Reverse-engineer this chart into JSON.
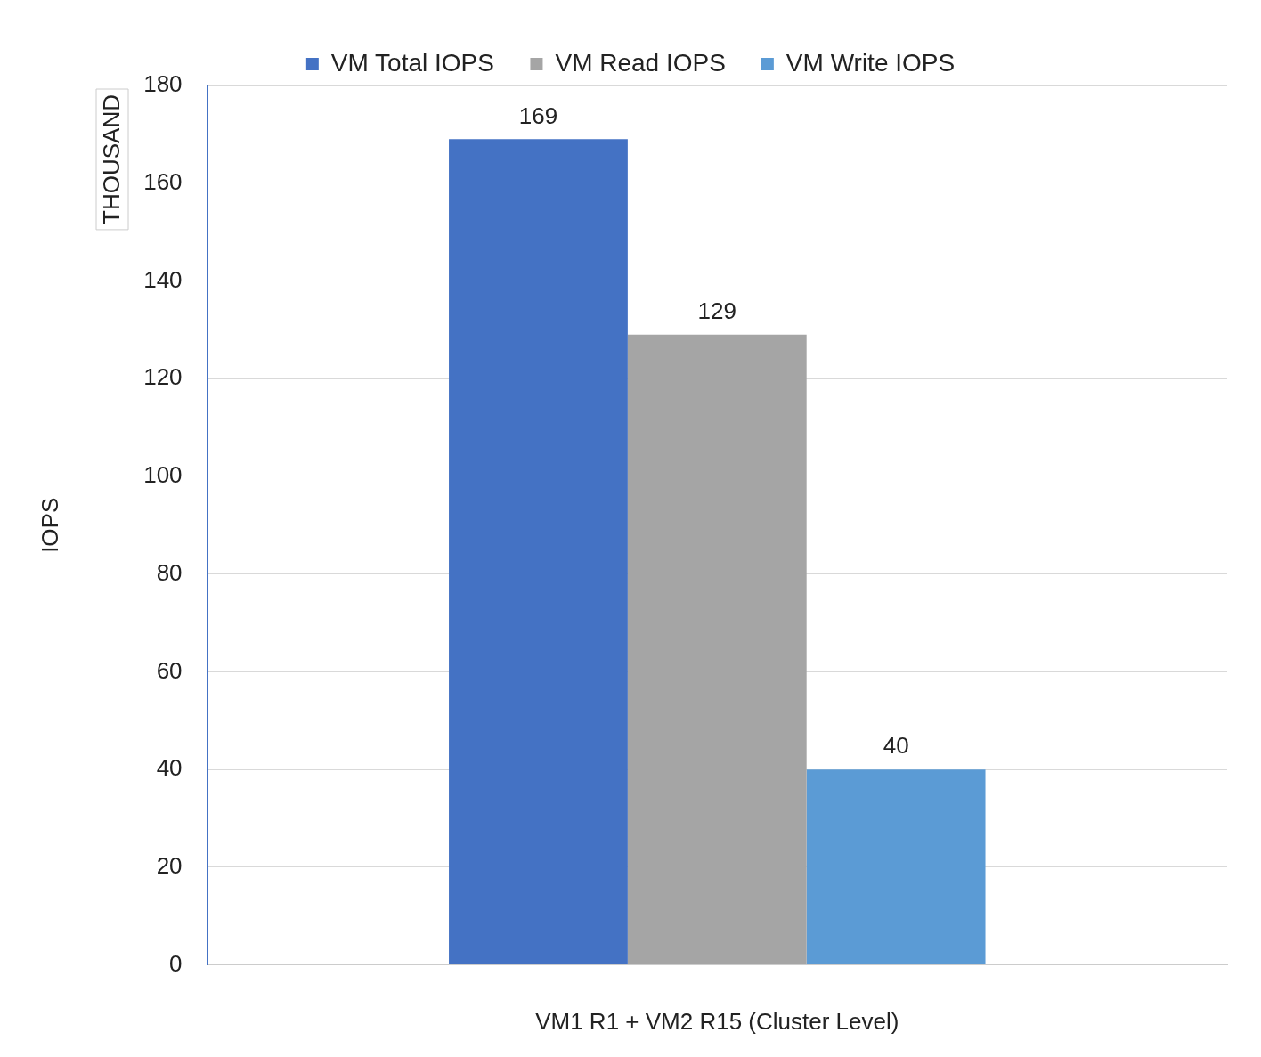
{
  "chart_data": {
    "type": "bar",
    "xlabel": "VM1 R1 + VM2 R15 (Cluster Level)",
    "ylabel": "IOPS",
    "categories": [
      null
    ],
    "series": [
      {
        "name": "VM Total IOPS",
        "color": "#4472c4",
        "values": [
          169
        ]
      },
      {
        "name": "VM Read IOPS",
        "color": "#a5a5a5",
        "values": [
          129
        ]
      },
      {
        "name": "VM Write IOPS",
        "color": "#5b9bd5",
        "values": [
          40
        ]
      }
    ],
    "ylim": [
      0,
      180
    ],
    "yticks": [
      0,
      20,
      40,
      60,
      80,
      100,
      120,
      140,
      160,
      180
    ],
    "grid": "y",
    "legend": "top",
    "data_labels": true,
    "annotations": [
      "THOUSAND"
    ]
  }
}
